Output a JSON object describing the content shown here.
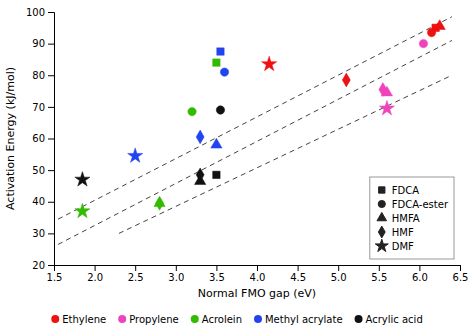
{
  "chart_data": {
    "type": "scatter",
    "xlabel": "Normal FMO gap (eV)",
    "ylabel": "Activation Energy (kJ/mol)",
    "xlim": [
      1.5,
      6.5
    ],
    "ylim": [
      20,
      100
    ],
    "xticks": [
      1.5,
      {
        "value": 2,
        "label": "2.0"
      },
      2.5,
      {
        "value": 3,
        "label": "3.0"
      },
      3.5,
      {
        "value": 4,
        "label": "4.0"
      },
      4.5,
      {
        "value": 5,
        "label": "5.0"
      },
      5.5,
      {
        "value": 6,
        "label": "6.0"
      },
      6.5
    ],
    "yticks": [
      20,
      30,
      40,
      50,
      60,
      70,
      80,
      90,
      100
    ],
    "grid": false,
    "legend": "lower right",
    "series": [
      {
        "name": "FDCA",
        "marker": "square",
        "x": [
          6.2,
          3.5,
          3.55,
          3.5
        ],
        "values": [
          95.0,
          84.0,
          87.5,
          48.5
        ],
        "colors": [
          "#EE1111",
          "#33BB00",
          "#2244EE",
          "#111111"
        ]
      },
      {
        "name": "FDCA-ester",
        "marker": "circle",
        "x": [
          6.15,
          6.05,
          3.2,
          3.6,
          3.55
        ],
        "values": [
          93.5,
          90.0,
          68.5,
          81.0,
          69.0
        ],
        "colors": [
          "#EE1111",
          "#EE44BB",
          "#33BB00",
          "#2244EE",
          "#111111"
        ]
      },
      {
        "name": "HMFA",
        "marker": "triangle",
        "x": [
          6.25,
          5.6,
          2.8,
          3.5,
          3.3
        ],
        "values": [
          95.5,
          74.5,
          39.5,
          58.0,
          46.5
        ],
        "colors": [
          "#EE1111",
          "#EE44BB",
          "#33BB00",
          "#2244EE",
          "#111111"
        ]
      },
      {
        "name": "HMF",
        "marker": "diamond",
        "x": [
          5.1,
          5.55,
          2.8,
          3.3,
          3.3
        ],
        "values": [
          78.5,
          75.5,
          39.5,
          60.5,
          48.5
        ],
        "colors": [
          "#EE1111",
          "#EE44BB",
          "#33BB00",
          "#2244EE",
          "#111111"
        ]
      },
      {
        "name": "DMF",
        "marker": "star",
        "x": [
          4.15,
          5.6,
          1.85,
          2.5,
          1.85
        ],
        "values": [
          83.5,
          69.5,
          37.0,
          54.5,
          47.0
        ],
        "colors": [
          "#EE1111",
          "#EE44BB",
          "#33BB00",
          "#2244EE",
          "#111111"
        ]
      }
    ],
    "trend_lines": [
      {
        "x": [
          1.55,
          6.4
        ],
        "values": [
          34.5,
          98.5
        ],
        "line_style": "dashed"
      },
      {
        "x": [
          1.55,
          6.4
        ],
        "values": [
          26.5,
          91.0
        ],
        "line_style": "dashed"
      },
      {
        "x": [
          2.3,
          6.4
        ],
        "values": [
          30.0,
          80.0
        ],
        "line_style": "dashed"
      }
    ],
    "color_legend": [
      {
        "name": "Ethylene",
        "color": "#EE1111"
      },
      {
        "name": "Propylene",
        "color": "#EE44BB"
      },
      {
        "name": "Acrolein",
        "color": "#33BB00"
      },
      {
        "name": "Methyl acrylate",
        "color": "#2244EE"
      },
      {
        "name": "Acrylic acid",
        "color": "#111111"
      }
    ]
  }
}
